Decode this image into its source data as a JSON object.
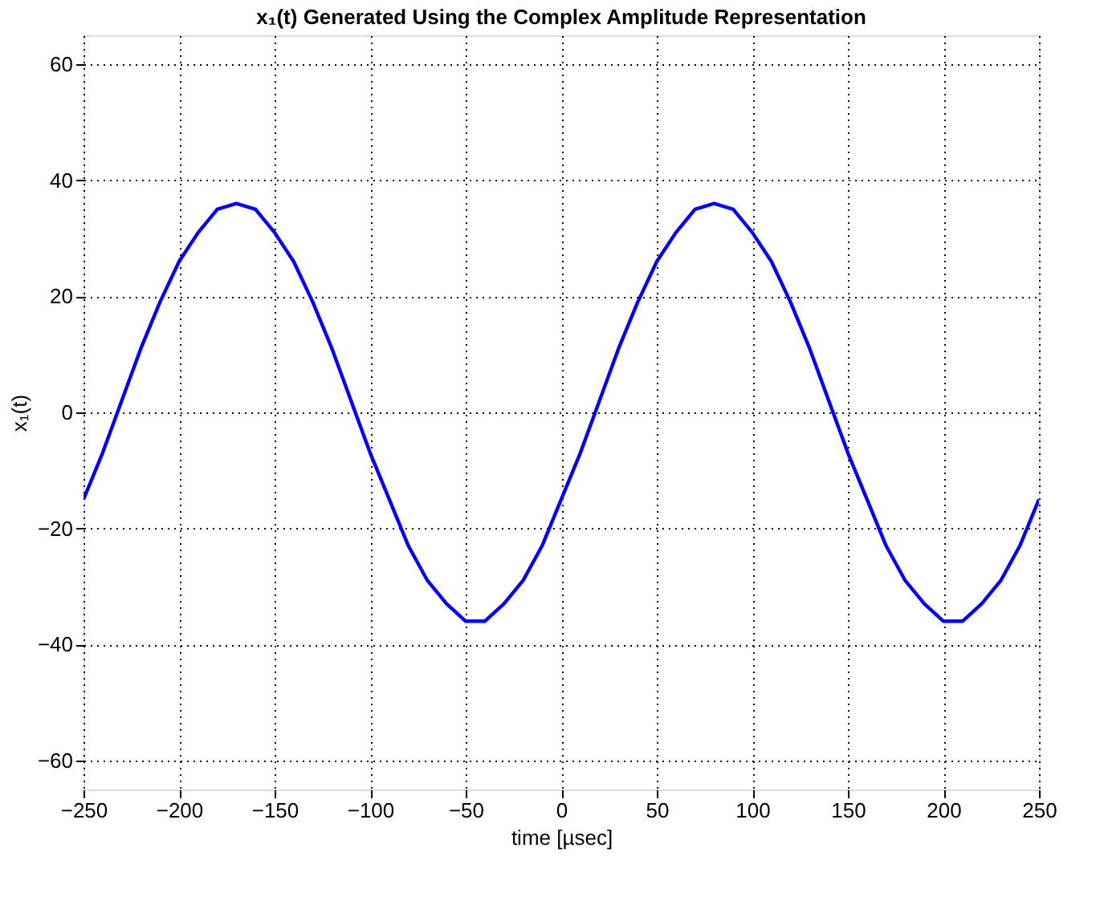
{
  "chart_data": {
    "type": "line",
    "title": "x₁(t)  Generated Using the Complex Amplitude Representation",
    "xlabel": "time     [µsec]",
    "ylabel": "x₁(t)",
    "x": [
      -250,
      -240,
      -230,
      -220,
      -210,
      -200,
      -190,
      -180,
      -170,
      -160,
      -150,
      -140,
      -130,
      -120,
      -110,
      -100,
      -90,
      -80,
      -70,
      -60,
      -50,
      -40,
      -30,
      -20,
      -10,
      0,
      10,
      20,
      30,
      40,
      50,
      60,
      70,
      80,
      90,
      100,
      110,
      120,
      130,
      140,
      150,
      160,
      170,
      180,
      190,
      200,
      210,
      220,
      230,
      240,
      250
    ],
    "series": [
      {
        "color": "#0000ff",
        "values": [
          -15,
          -7,
          2,
          11,
          19,
          26,
          31,
          35,
          36,
          35,
          31,
          26,
          19,
          11,
          2,
          -7,
          -15,
          -23,
          -29,
          -33,
          -36,
          -36,
          -33,
          -29,
          -23,
          -15,
          -7,
          2,
          11,
          19,
          26,
          31,
          35,
          36,
          35,
          31,
          26,
          19,
          11,
          2,
          -7,
          -15,
          -23,
          -29,
          -33,
          -36,
          -36,
          -33,
          -29,
          -23,
          -15
        ]
      }
    ],
    "xlim": [
      -250,
      250
    ],
    "xticks": [
      -250,
      -200,
      -150,
      -100,
      -50,
      0,
      50,
      100,
      150,
      200,
      250
    ],
    "ylim": [
      -65,
      65
    ],
    "yticks": [
      -60,
      -40,
      -20,
      0,
      20,
      40,
      60
    ],
    "grid": true,
    "line_style": "solid"
  }
}
